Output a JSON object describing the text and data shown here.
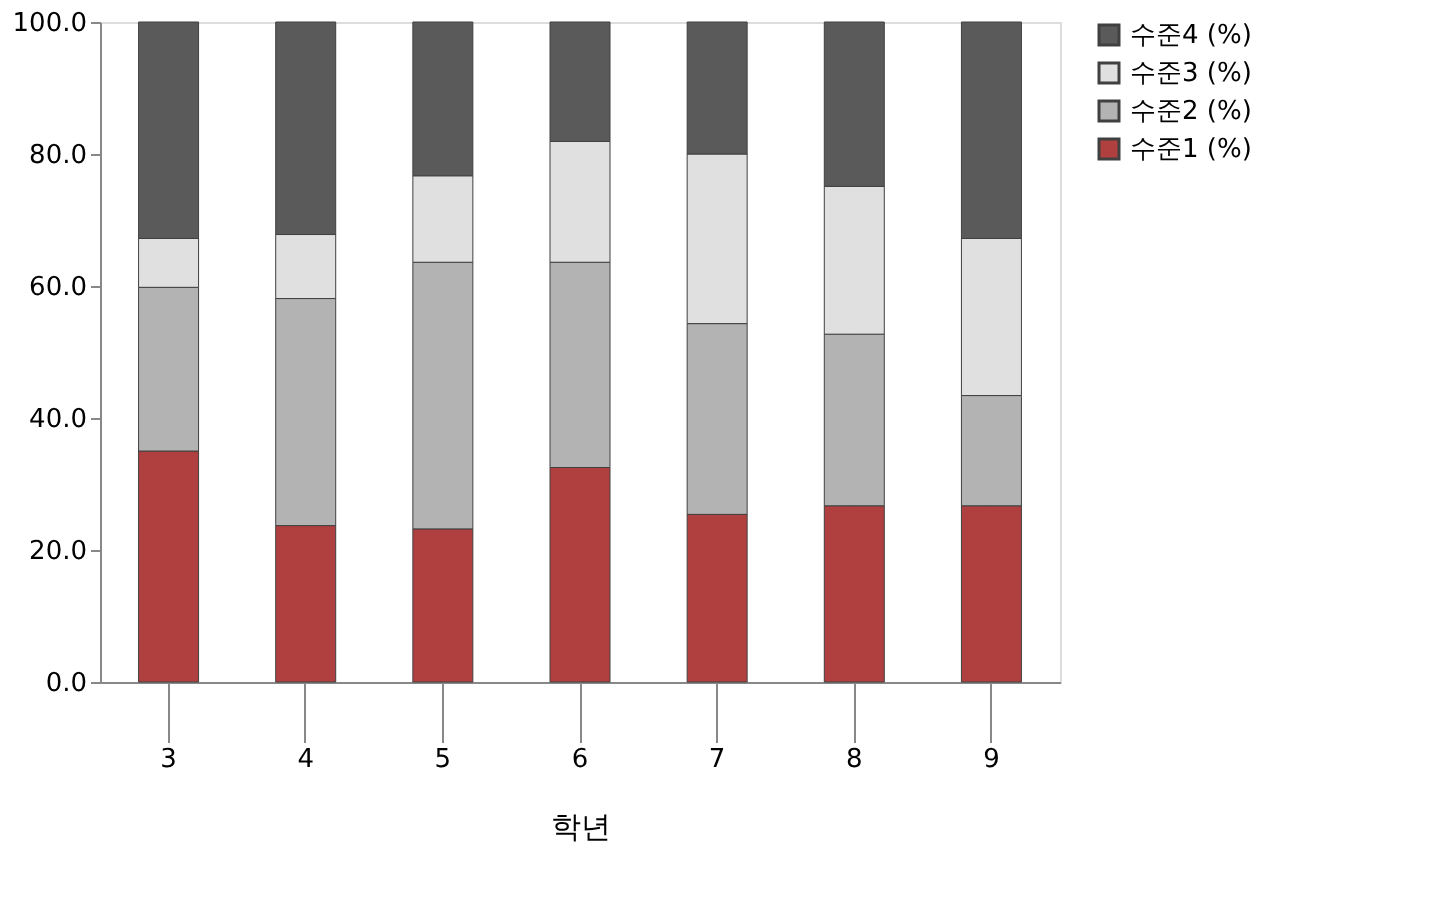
{
  "chart_data": {
    "type": "bar",
    "stacked": true,
    "xlabel": "학년",
    "categories": [
      "3",
      "4",
      "5",
      "6",
      "7",
      "8",
      "9"
    ],
    "series": [
      {
        "name": "수준1 (%)",
        "color": "#b0403f",
        "values": [
          35.0,
          23.7,
          23.2,
          32.5,
          25.4,
          26.7,
          26.7
        ]
      },
      {
        "name": "수준2 (%)",
        "color": "#b3b3b3",
        "values": [
          24.8,
          34.4,
          40.4,
          31.1,
          28.9,
          26.0,
          16.7
        ]
      },
      {
        "name": "수준3 (%)",
        "color": "#e0e0e0",
        "values": [
          7.4,
          9.7,
          13.1,
          18.3,
          25.7,
          22.4,
          23.8
        ]
      },
      {
        "name": "수준4 (%)",
        "color": "#5a5a5a",
        "values": [
          32.8,
          32.2,
          23.3,
          18.1,
          20.0,
          24.9,
          32.8
        ]
      }
    ],
    "ylim": [
      0,
      100
    ],
    "yticks": [
      {
        "value": 0,
        "label": "0.0"
      },
      {
        "value": 20,
        "label": "20.0"
      },
      {
        "value": 40,
        "label": "40.0"
      },
      {
        "value": 60,
        "label": "60.0"
      },
      {
        "value": 80,
        "label": "80.0"
      },
      {
        "value": 100,
        "label": "100.0"
      }
    ],
    "legend": "right",
    "grid": false
  }
}
